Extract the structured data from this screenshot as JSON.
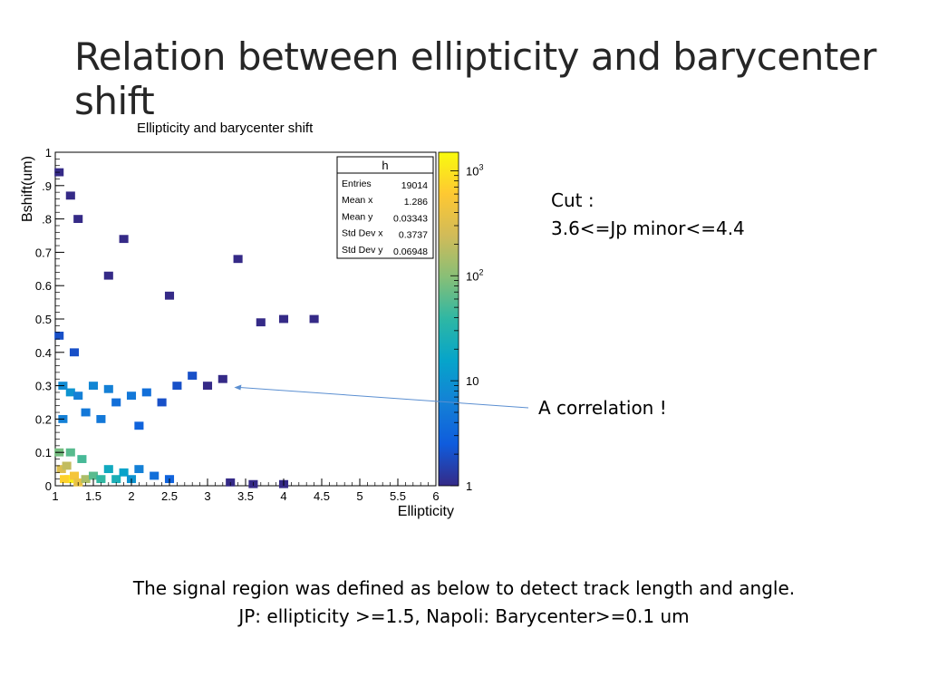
{
  "slide": {
    "title": "Relation between ellipticity and barycenter shift",
    "cut_label": "Cut :",
    "cut_value": "3.6<=Jp minor<=4.4",
    "annotation": "A correlation !",
    "footer_line1": "The signal region was defined as below to detect track length and angle.",
    "footer_line2": "JP: ellipticity >=1.5, Napoli: Barycenter>=0.1 um"
  },
  "chart_data": {
    "type": "heatmap",
    "title": "Ellipticity and barycenter shift",
    "xlabel": "Ellipticity",
    "ylabel": "Bshift(um)",
    "xlim": [
      1,
      6
    ],
    "ylim": [
      0,
      1
    ],
    "x_ticks": [
      "1",
      "1.5",
      "2",
      "2.5",
      "3",
      "3.5",
      "4",
      "4.5",
      "5",
      "5.5",
      "6"
    ],
    "y_ticks": [
      ".9",
      ".8",
      "0.7",
      "0.6",
      "0.5",
      "0.4",
      "0.3",
      "0.2",
      "0.1",
      "0"
    ],
    "y_top_label": "1",
    "z_scale": "log",
    "z_ticks": [
      "1",
      "10",
      "10^2",
      "10^3"
    ],
    "colormap": [
      "#352a87",
      "#0f5cdd",
      "#1481d6",
      "#06a4ca",
      "#2eb7a4",
      "#87bf77",
      "#d1bb59",
      "#fec832",
      "#f9fb0e"
    ],
    "stats": {
      "name": "h",
      "rows": [
        {
          "label": "Entries",
          "value": "19014"
        },
        {
          "label": "Mean x",
          "value": "1.286"
        },
        {
          "label": "Mean y",
          "value": "0.03343"
        },
        {
          "label": "Std Dev x",
          "value": "0.3737"
        },
        {
          "label": "Std Dev y",
          "value": "0.06948"
        }
      ]
    },
    "annotation_arrow": {
      "from_x": 7.15,
      "from_y": 0.228,
      "to_x": 3.35,
      "to_y": 0.295
    },
    "bins": [
      [
        1.18,
        0.02,
        1200
      ],
      [
        1.12,
        0.02,
        700
      ],
      [
        1.25,
        0.03,
        500
      ],
      [
        1.08,
        0.05,
        300
      ],
      [
        1.3,
        0.01,
        400
      ],
      [
        1.15,
        0.06,
        200
      ],
      [
        1.4,
        0.02,
        150
      ],
      [
        1.05,
        0.1,
        80
      ],
      [
        1.2,
        0.1,
        60
      ],
      [
        1.5,
        0.03,
        60
      ],
      [
        1.6,
        0.02,
        40
      ],
      [
        1.35,
        0.08,
        50
      ],
      [
        1.7,
        0.05,
        20
      ],
      [
        1.8,
        0.02,
        25
      ],
      [
        1.9,
        0.04,
        15
      ],
      [
        2.0,
        0.02,
        10
      ],
      [
        2.1,
        0.05,
        6
      ],
      [
        2.3,
        0.03,
        4
      ],
      [
        2.5,
        0.02,
        3
      ],
      [
        1.1,
        0.3,
        8
      ],
      [
        1.2,
        0.28,
        10
      ],
      [
        1.3,
        0.27,
        6
      ],
      [
        1.5,
        0.3,
        7
      ],
      [
        1.7,
        0.29,
        6
      ],
      [
        2.0,
        0.27,
        5
      ],
      [
        2.2,
        0.28,
        4
      ],
      [
        1.1,
        0.2,
        6
      ],
      [
        1.4,
        0.22,
        5
      ],
      [
        1.6,
        0.2,
        5
      ],
      [
        1.8,
        0.25,
        4
      ],
      [
        2.1,
        0.18,
        3
      ],
      [
        1.25,
        0.4,
        2
      ],
      [
        1.05,
        0.45,
        2
      ],
      [
        2.4,
        0.25,
        2
      ],
      [
        2.6,
        0.3,
        2
      ],
      [
        2.8,
        0.33,
        2
      ],
      [
        3.0,
        0.3,
        1
      ],
      [
        3.2,
        0.32,
        1
      ],
      [
        1.05,
        0.94,
        1
      ],
      [
        1.2,
        0.87,
        1
      ],
      [
        1.3,
        0.8,
        1
      ],
      [
        1.9,
        0.74,
        1
      ],
      [
        1.7,
        0.63,
        1
      ],
      [
        2.5,
        0.57,
        1
      ],
      [
        3.4,
        0.68,
        1
      ],
      [
        4.0,
        0.5,
        1
      ],
      [
        4.4,
        0.5,
        1
      ],
      [
        3.7,
        0.49,
        1
      ],
      [
        4.0,
        0.005,
        1
      ],
      [
        3.3,
        0.01,
        1
      ],
      [
        3.6,
        0.005,
        1
      ]
    ]
  }
}
